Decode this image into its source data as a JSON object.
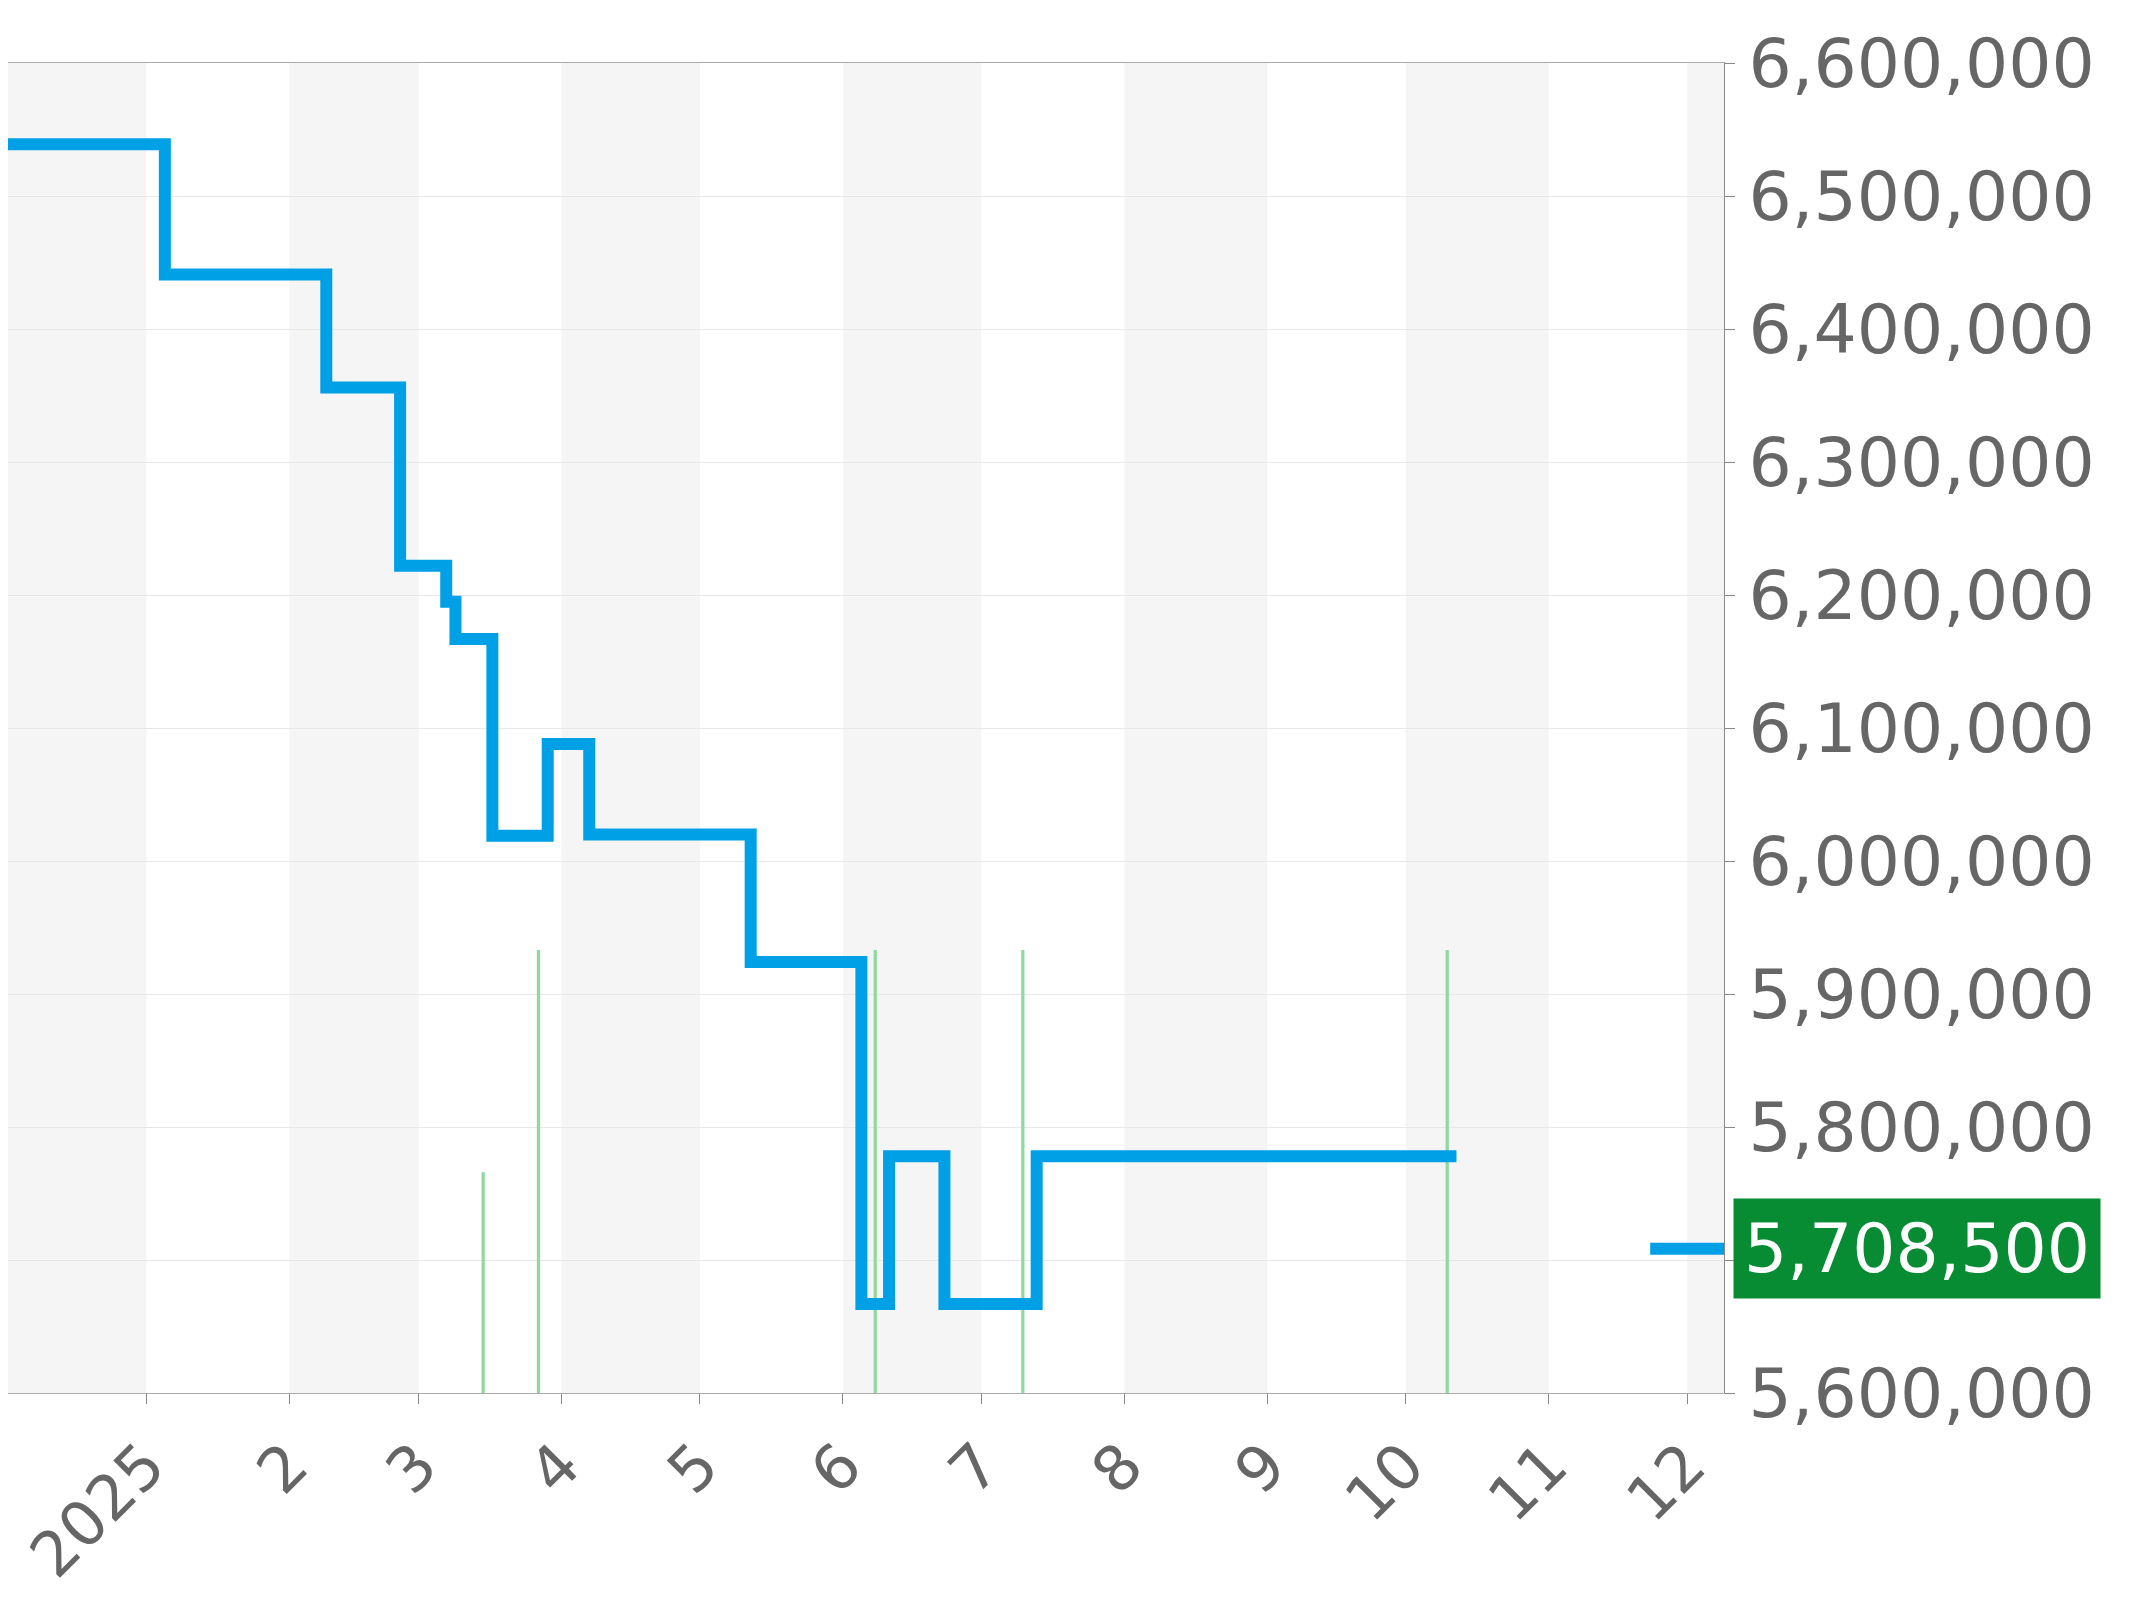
{
  "chart_data": {
    "type": "step",
    "xlim": [
      "2024-12-02",
      "2025-12-09"
    ],
    "ylim": [
      5600000,
      6600000
    ],
    "xticks": [
      {
        "value": "2025-01-01",
        "label": "2025"
      },
      {
        "value": "2025-02-01",
        "label": "2"
      },
      {
        "value": "2025-03-01",
        "label": "3"
      },
      {
        "value": "2025-04-01",
        "label": "4"
      },
      {
        "value": "2025-05-01",
        "label": "5"
      },
      {
        "value": "2025-06-01",
        "label": "6"
      },
      {
        "value": "2025-07-01",
        "label": "7"
      },
      {
        "value": "2025-08-01",
        "label": "8"
      },
      {
        "value": "2025-09-01",
        "label": "9"
      },
      {
        "value": "2025-10-01",
        "label": "10"
      },
      {
        "value": "2025-11-01",
        "label": "11"
      },
      {
        "value": "2025-12-01",
        "label": "12"
      }
    ],
    "yticks": [
      {
        "value": 5600000,
        "label": "5,600,000"
      },
      {
        "value": 5700000,
        "label": null
      },
      {
        "value": 5800000,
        "label": "5,800,000"
      },
      {
        "value": 5900000,
        "label": "5,900,000"
      },
      {
        "value": 6000000,
        "label": "6,000,000"
      },
      {
        "value": 6100000,
        "label": "6,100,000"
      },
      {
        "value": 6200000,
        "label": "6,200,000"
      },
      {
        "value": 6300000,
        "label": "6,300,000"
      },
      {
        "value": 6400000,
        "label": "6,400,000"
      },
      {
        "value": 6500000,
        "label": "6,500,000"
      },
      {
        "value": 6600000,
        "label": "6,600,000"
      }
    ],
    "grid": "y",
    "marker": "none",
    "line_style": "solid",
    "series": [
      {
        "color": "#00a0e6",
        "x": [
          "2024-12-02",
          "2025-01-05",
          "2025-02-09",
          "2025-02-25",
          "2025-03-07",
          "2025-03-09",
          "2025-03-17",
          "2025-03-29",
          "2025-04-07",
          "2025-05-12",
          "2025-06-05",
          "2025-06-11",
          "2025-06-23",
          "2025-07-13",
          "2025-10-12",
          "2025-11-01",
          "2025-11-23",
          "2025-12-09"
        ],
        "values": [
          6539000,
          6441000,
          6356000,
          6222000,
          6195000,
          6167000,
          6019000,
          6088000,
          6020000,
          5924000,
          5667000,
          5778000,
          5667000,
          5778000,
          5778000,
          null,
          5708500,
          5708500
        ]
      },
      {
        "type": "bar",
        "color": "#8fd9a0",
        "x": [
          "2025-03-15",
          "2025-03-27",
          "2025-06-08",
          "2025-07-10",
          "2025-10-10"
        ],
        "base": [
          5600000,
          5600000,
          5600000,
          5600000,
          5600000
        ],
        "values": [
          166000,
          333000,
          333000,
          333000,
          333000
        ]
      }
    ],
    "bands": [
      {
        "axis": "x",
        "from": "2024-12-02",
        "to": "2025-01-01",
        "color": "#f5f5f5"
      },
      {
        "axis": "x",
        "from": "2025-02-01",
        "to": "2025-03-01",
        "color": "#f5f5f5"
      },
      {
        "axis": "x",
        "from": "2025-04-01",
        "to": "2025-05-01",
        "color": "#f5f5f5"
      },
      {
        "axis": "x",
        "from": "2025-06-01",
        "to": "2025-07-01",
        "color": "#f5f5f5"
      },
      {
        "axis": "x",
        "from": "2025-08-01",
        "to": "2025-09-01",
        "color": "#f5f5f5"
      },
      {
        "axis": "x",
        "from": "2025-10-01",
        "to": "2025-11-01",
        "color": "#f5f5f5"
      },
      {
        "axis": "x",
        "from": "2025-12-01",
        "to": "2025-12-09",
        "color": "#f5f5f5"
      }
    ],
    "annotations": [
      "5,708,500"
    ]
  }
}
